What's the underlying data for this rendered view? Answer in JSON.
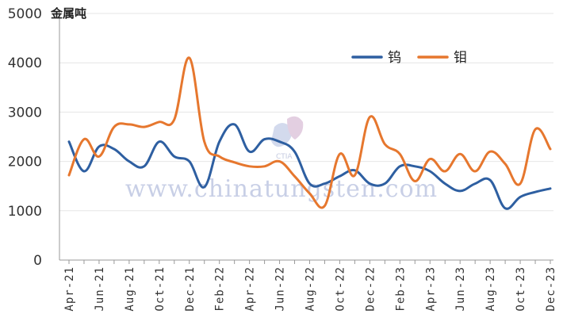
{
  "chart_data": {
    "type": "line",
    "ylabel": "金属吨",
    "ylim": [
      0,
      5000
    ],
    "yticks": [
      0,
      1000,
      2000,
      3000,
      4000,
      5000
    ],
    "categories": [
      "Apr-21",
      "May-21",
      "Jun-21",
      "Jul-21",
      "Aug-21",
      "Sep-21",
      "Oct-21",
      "Nov-21",
      "Dec-21",
      "Jan-22",
      "Feb-22",
      "Mar-22",
      "Apr-22",
      "May-22",
      "Jun-22",
      "Jul-22",
      "Aug-22",
      "Sep-22",
      "Oct-22",
      "Nov-22",
      "Dec-22",
      "Jan-23",
      "Feb-23",
      "Mar-23",
      "Apr-23",
      "May-23",
      "Jun-23",
      "Jul-23",
      "Aug-23",
      "Sep-23",
      "Oct-23",
      "Nov-23",
      "Dec-23"
    ],
    "tick_labels": [
      "Apr-21",
      "Jun-21",
      "Aug-21",
      "Oct-21",
      "Dec-21",
      "Feb-22",
      "Apr-22",
      "Jun-22",
      "Aug-22",
      "Oct-22",
      "Dec-22",
      "Feb-23",
      "Apr-23",
      "Jun-23",
      "Aug-23",
      "Oct-23",
      "Dec-23"
    ],
    "legend_position": "top-right",
    "grid": true,
    "series": [
      {
        "name": "钨",
        "color": "#2e5fa1",
        "values": [
          2400,
          1800,
          2300,
          2250,
          2000,
          1900,
          2400,
          2100,
          2000,
          1480,
          2400,
          2750,
          2200,
          2450,
          2400,
          2200,
          1550,
          1550,
          1700,
          1820,
          1550,
          1550,
          1900,
          1900,
          1800,
          1550,
          1400,
          1550,
          1620,
          1050,
          1280,
          1380,
          1450
        ]
      },
      {
        "name": "钼",
        "color": "#e6772e",
        "values": [
          1720,
          2450,
          2100,
          2700,
          2750,
          2700,
          2800,
          2850,
          4100,
          2400,
          2100,
          1980,
          1900,
          1900,
          2000,
          1700,
          1350,
          1100,
          2150,
          1720,
          2900,
          2350,
          2150,
          1600,
          2050,
          1800,
          2150,
          1800,
          2200,
          1950,
          1550,
          2650,
          2250
        ]
      }
    ]
  },
  "watermark": {
    "text": "www.chinatungsten.com",
    "logo_text": "CTIA"
  }
}
